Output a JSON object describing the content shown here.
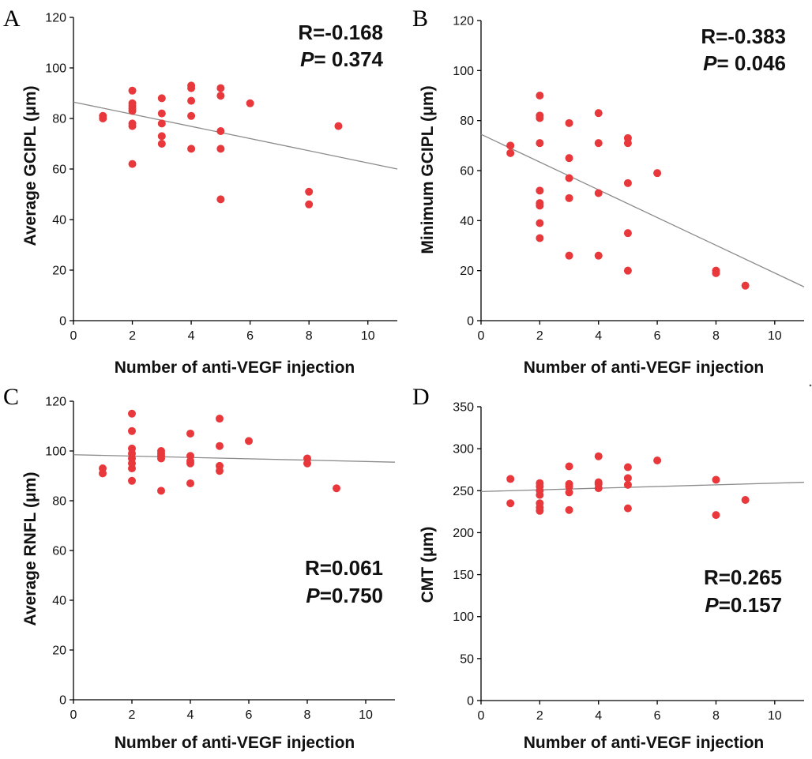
{
  "chart_data": [
    {
      "type": "scatter",
      "panel": "A",
      "xlabel": "Number of anti-VEGF injection",
      "ylabel": "Average GCIPL (μm)",
      "xlim": [
        0,
        11
      ],
      "ylim": [
        0,
        120
      ],
      "xticks": [
        0,
        2,
        4,
        6,
        8,
        10
      ],
      "yticks": [
        0,
        20,
        40,
        60,
        80,
        100,
        120
      ],
      "stats": {
        "r_label": "R=-0.168",
        "p_letter": "P",
        "p_text": "= 0.374"
      },
      "trendline": {
        "x": [
          0,
          11
        ],
        "y": [
          86.5,
          60
        ]
      },
      "points": [
        [
          1,
          81
        ],
        [
          1,
          80
        ],
        [
          2,
          91
        ],
        [
          2,
          86
        ],
        [
          2,
          85
        ],
        [
          2,
          84
        ],
        [
          2,
          83
        ],
        [
          2,
          78
        ],
        [
          2,
          77
        ],
        [
          2,
          62
        ],
        [
          3,
          88
        ],
        [
          3,
          82
        ],
        [
          3,
          78
        ],
        [
          3,
          73
        ],
        [
          3,
          70
        ],
        [
          4,
          93
        ],
        [
          4,
          92
        ],
        [
          4,
          87
        ],
        [
          4,
          81
        ],
        [
          4,
          68
        ],
        [
          5,
          92
        ],
        [
          5,
          89
        ],
        [
          5,
          75
        ],
        [
          5,
          68
        ],
        [
          5,
          48
        ],
        [
          6,
          86
        ],
        [
          8,
          51
        ],
        [
          8,
          46
        ],
        [
          9,
          77
        ]
      ]
    },
    {
      "type": "scatter",
      "panel": "B",
      "xlabel": "Number of anti-VEGF injection",
      "ylabel": "Minimum GCIPL (μm)",
      "xlim": [
        0,
        11
      ],
      "ylim": [
        0,
        120
      ],
      "xticks": [
        0,
        2,
        4,
        6,
        8,
        10
      ],
      "yticks": [
        0,
        20,
        40,
        60,
        80,
        100,
        120
      ],
      "stats": {
        "r_label": "R=-0.383",
        "p_letter": "P",
        "p_text": "= 0.046"
      },
      "trendline": {
        "x": [
          0,
          11
        ],
        "y": [
          74.5,
          13.5
        ]
      },
      "points": [
        [
          1,
          70
        ],
        [
          1,
          67
        ],
        [
          2,
          90
        ],
        [
          2,
          82
        ],
        [
          2,
          81
        ],
        [
          2,
          71
        ],
        [
          2,
          52
        ],
        [
          2,
          47
        ],
        [
          2,
          46
        ],
        [
          2,
          39
        ],
        [
          2,
          33
        ],
        [
          3,
          79
        ],
        [
          3,
          65
        ],
        [
          3,
          57
        ],
        [
          3,
          49
        ],
        [
          3,
          26
        ],
        [
          4,
          83
        ],
        [
          4,
          71
        ],
        [
          4,
          51
        ],
        [
          4,
          26
        ],
        [
          5,
          73
        ],
        [
          5,
          71
        ],
        [
          5,
          55
        ],
        [
          5,
          35
        ],
        [
          5,
          20
        ],
        [
          6,
          59
        ],
        [
          8,
          20
        ],
        [
          8,
          19
        ],
        [
          9,
          14
        ]
      ]
    },
    {
      "type": "scatter",
      "panel": "C",
      "xlabel": "Number of anti-VEGF injection",
      "ylabel": "Average RNFL (μm)",
      "xlim": [
        0,
        11
      ],
      "ylim": [
        0,
        120
      ],
      "xticks": [
        0,
        2,
        4,
        6,
        8,
        10
      ],
      "yticks": [
        0,
        20,
        40,
        60,
        80,
        100,
        120
      ],
      "stats": {
        "r_label": "R=0.061",
        "p_letter": "P",
        "p_text": "=0.750"
      },
      "trendline": {
        "x": [
          0,
          11
        ],
        "y": [
          98.5,
          95.5
        ]
      },
      "points": [
        [
          1,
          93
        ],
        [
          1,
          91
        ],
        [
          2,
          115
        ],
        [
          2,
          108
        ],
        [
          2,
          101
        ],
        [
          2,
          99
        ],
        [
          2,
          97
        ],
        [
          2,
          95
        ],
        [
          2,
          93
        ],
        [
          2,
          88
        ],
        [
          3,
          100
        ],
        [
          3,
          99
        ],
        [
          3,
          98
        ],
        [
          3,
          97
        ],
        [
          3,
          84
        ],
        [
          4,
          107
        ],
        [
          4,
          98
        ],
        [
          4,
          96
        ],
        [
          4,
          95
        ],
        [
          4,
          87
        ],
        [
          5,
          113
        ],
        [
          5,
          102
        ],
        [
          5,
          94
        ],
        [
          5,
          92
        ],
        [
          6,
          104
        ],
        [
          8,
          97
        ],
        [
          8,
          95
        ],
        [
          9,
          85
        ]
      ]
    },
    {
      "type": "scatter",
      "panel": "D",
      "xlabel": "Number of anti-VEGF injection",
      "ylabel": "CMT (μm)",
      "xlim": [
        0,
        11
      ],
      "ylim": [
        0,
        350
      ],
      "xticks": [
        0,
        2,
        4,
        6,
        8,
        10
      ],
      "yticks": [
        0,
        50,
        100,
        150,
        200,
        250,
        300,
        350
      ],
      "stats": {
        "r_label": "R=0.265",
        "p_letter": "P",
        "p_text": "=0.157"
      },
      "trendline": {
        "x": [
          0,
          11
        ],
        "y": [
          249,
          260
        ]
      },
      "points": [
        [
          1,
          264
        ],
        [
          1,
          235
        ],
        [
          2,
          259
        ],
        [
          2,
          255
        ],
        [
          2,
          250
        ],
        [
          2,
          245
        ],
        [
          2,
          235
        ],
        [
          2,
          230
        ],
        [
          2,
          226
        ],
        [
          3,
          279
        ],
        [
          3,
          258
        ],
        [
          3,
          255
        ],
        [
          3,
          248
        ],
        [
          3,
          227
        ],
        [
          4,
          291
        ],
        [
          4,
          260
        ],
        [
          4,
          258
        ],
        [
          4,
          253
        ],
        [
          5,
          278
        ],
        [
          5,
          265
        ],
        [
          5,
          257
        ],
        [
          5,
          229
        ],
        [
          6,
          286
        ],
        [
          8,
          263
        ],
        [
          8,
          221
        ],
        [
          9,
          239
        ]
      ]
    }
  ]
}
